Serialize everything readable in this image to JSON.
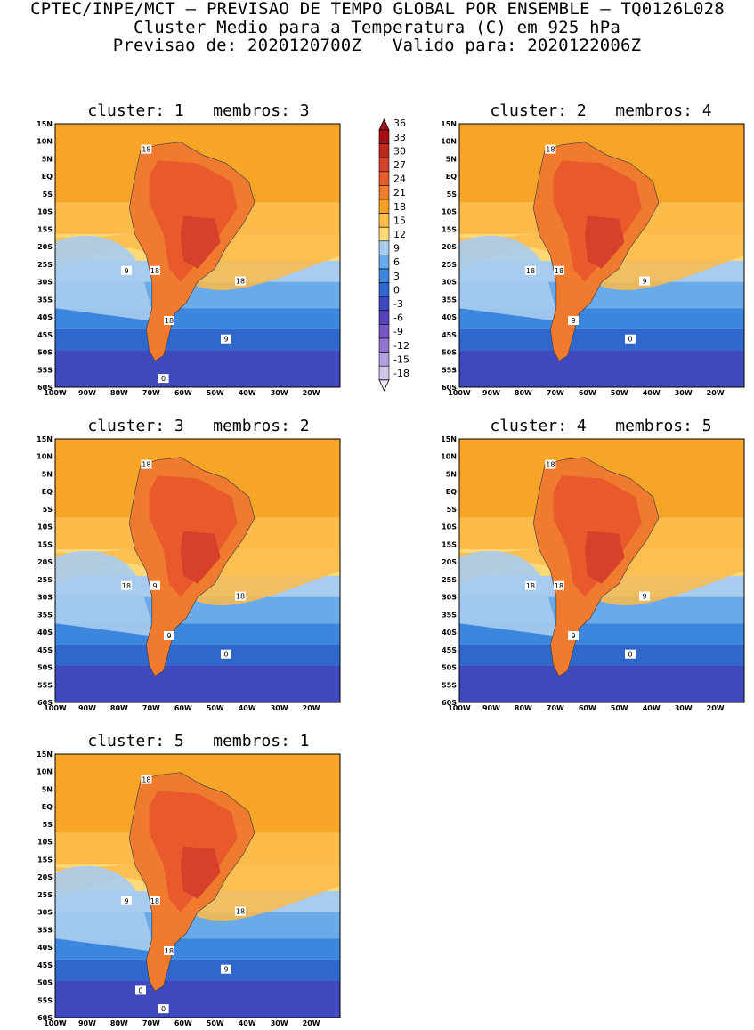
{
  "header": {
    "line1": "CPTEC/INPE/MCT – PREVISAO DE TEMPO GLOBAL POR ENSEMBLE – TQ0126L028",
    "line2": "Cluster Medio para a Temperatura (C) em 925 hPa",
    "line3": "Previsao de: 2020120700Z   Valido para: 2020122006Z"
  },
  "panels": [
    {
      "id": 1,
      "title": "cluster: 1   membros: 3",
      "contour_labels": [
        "18",
        "18",
        "9",
        "18",
        "18",
        "9",
        "0"
      ]
    },
    {
      "id": 2,
      "title": "cluster: 2   membros: 4",
      "contour_labels": [
        "18",
        "18",
        "18",
        "9",
        "9",
        "0"
      ]
    },
    {
      "id": 3,
      "title": "cluster: 3   membros: 2",
      "contour_labels": [
        "18",
        "9",
        "18",
        "18",
        "9",
        "0"
      ]
    },
    {
      "id": 4,
      "title": "cluster: 4   membros: 5",
      "contour_labels": [
        "18",
        "18",
        "18",
        "9",
        "9",
        "0"
      ]
    },
    {
      "id": 5,
      "title": "cluster: 5   membros: 1",
      "contour_labels": [
        "18",
        "18",
        "9",
        "18",
        "18",
        "9",
        "0",
        "0"
      ]
    }
  ],
  "axes": {
    "lat_ticks": [
      "15N",
      "10N",
      "5N",
      "EQ",
      "5S",
      "10S",
      "15S",
      "20S",
      "25S",
      "30S",
      "35S",
      "40S",
      "45S",
      "50S",
      "55S",
      "60S"
    ],
    "lon_ticks": [
      "100W",
      "90W",
      "80W",
      "70W",
      "60W",
      "50W",
      "40W",
      "30W",
      "20W"
    ]
  },
  "colorbar": {
    "labels": [
      "36",
      "33",
      "30",
      "27",
      "24",
      "21",
      "18",
      "15",
      "12",
      "9",
      "6",
      "3",
      "0",
      "-3",
      "-6",
      "-9",
      "-12",
      "-15",
      "-18"
    ],
    "colors": [
      "#a50f15",
      "#c0261e",
      "#d7402b",
      "#e85a2c",
      "#f07b2f",
      "#f5a021",
      "#fdbb4a",
      "#fed976",
      "#a7ccf0",
      "#6aaae8",
      "#3d86dd",
      "#2f67cc",
      "#3f49bd",
      "#5842b8",
      "#7557c4",
      "#9274d0",
      "#b29fdf",
      "#d0c4ec"
    ]
  }
}
